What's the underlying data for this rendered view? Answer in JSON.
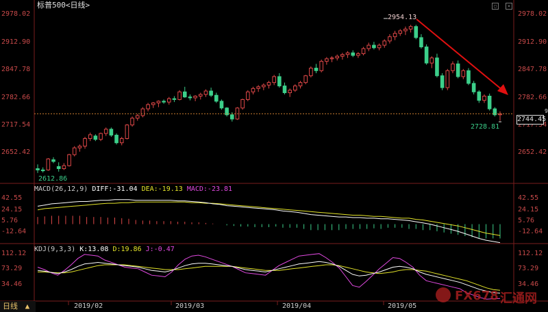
{
  "header": {
    "title": "标普500<日线>"
  },
  "icons": {
    "restore": "restore-icon",
    "close": "close-icon"
  },
  "bottom_tab": {
    "label": "日线",
    "arrow": "▲"
  },
  "watermark": {
    "brand": "FX678",
    "cn": "汇通网"
  },
  "price_axis": {
    "ticks": [
      "2978.02",
      "2912.90",
      "2847.78",
      "2782.66",
      "2717.54",
      "2652.42"
    ],
    "current": "2744.45",
    "marker": "9"
  },
  "macd_panel": {
    "label": "MACD(26,12,9)",
    "diff": "DIFF:-31.04",
    "dea": "DEA:-19.13",
    "macd": "MACD:-23.81",
    "ticks": [
      "42.55",
      "24.15",
      "5.76",
      "-12.64"
    ]
  },
  "kdj_panel": {
    "label": "KDJ(9,3,3)",
    "k": "K:13.08",
    "d": "D:19.86",
    "j": "J:-0.47",
    "ticks": [
      "112.12",
      "73.29",
      "34.46"
    ]
  },
  "date_labels": [
    "2019/02",
    "2019/03",
    "2019/04",
    "2019/05"
  ],
  "annotations": {
    "high": "2954.13",
    "low_start": "2612.86",
    "low_end": "2728.81"
  },
  "colors": {
    "up": "#e04848",
    "down": "#3ccf8a",
    "diff": "#ffffff",
    "dea": "#e6e62a",
    "j": "#e24ae2",
    "dotted": "#d08030",
    "arrow": "#e01010"
  },
  "chart_data": {
    "type": "candlestick",
    "title": "标普500<日线>",
    "ylim": [
      2590,
      2990
    ],
    "ohlc": [
      [
        2615,
        2625,
        2605,
        2612
      ],
      [
        2612,
        2618,
        2606,
        2610
      ],
      [
        2612,
        2640,
        2610,
        2638
      ],
      [
        2636,
        2642,
        2628,
        2632
      ],
      [
        2620,
        2630,
        2608,
        2615
      ],
      [
        2615,
        2628,
        2612,
        2622
      ],
      [
        2622,
        2650,
        2620,
        2648
      ],
      [
        2648,
        2668,
        2644,
        2664
      ],
      [
        2664,
        2672,
        2655,
        2668
      ],
      [
        2668,
        2690,
        2662,
        2686
      ],
      [
        2686,
        2700,
        2680,
        2695
      ],
      [
        2692,
        2696,
        2680,
        2684
      ],
      [
        2684,
        2700,
        2680,
        2698
      ],
      [
        2698,
        2712,
        2692,
        2708
      ],
      [
        2708,
        2712,
        2690,
        2694
      ],
      [
        2694,
        2698,
        2672,
        2676
      ],
      [
        2676,
        2690,
        2670,
        2686
      ],
      [
        2686,
        2720,
        2684,
        2718
      ],
      [
        2718,
        2738,
        2714,
        2734
      ],
      [
        2734,
        2744,
        2728,
        2740
      ],
      [
        2740,
        2760,
        2736,
        2756
      ],
      [
        2756,
        2770,
        2750,
        2766
      ],
      [
        2766,
        2772,
        2758,
        2770
      ],
      [
        2770,
        2776,
        2760,
        2774
      ],
      [
        2774,
        2778,
        2768,
        2772
      ],
      [
        2772,
        2784,
        2766,
        2780
      ],
      [
        2780,
        2786,
        2772,
        2778
      ],
      [
        2778,
        2800,
        2776,
        2796
      ],
      [
        2796,
        2808,
        2782,
        2784
      ],
      [
        2784,
        2790,
        2776,
        2782
      ],
      [
        2782,
        2788,
        2774,
        2786
      ],
      [
        2786,
        2794,
        2778,
        2790
      ],
      [
        2790,
        2802,
        2784,
        2798
      ],
      [
        2798,
        2806,
        2784,
        2788
      ],
      [
        2788,
        2794,
        2770,
        2774
      ],
      [
        2774,
        2778,
        2754,
        2758
      ],
      [
        2758,
        2760,
        2738,
        2742
      ],
      [
        2742,
        2748,
        2726,
        2732
      ],
      [
        2732,
        2760,
        2730,
        2758
      ],
      [
        2758,
        2780,
        2754,
        2778
      ],
      [
        2778,
        2800,
        2774,
        2796
      ],
      [
        2796,
        2808,
        2790,
        2804
      ],
      [
        2804,
        2812,
        2796,
        2808
      ],
      [
        2808,
        2816,
        2800,
        2812
      ],
      [
        2812,
        2822,
        2804,
        2818
      ],
      [
        2818,
        2836,
        2812,
        2832
      ],
      [
        2832,
        2840,
        2806,
        2810
      ],
      [
        2810,
        2818,
        2790,
        2794
      ],
      [
        2794,
        2804,
        2784,
        2800
      ],
      [
        2800,
        2814,
        2796,
        2810
      ],
      [
        2810,
        2822,
        2804,
        2818
      ],
      [
        2818,
        2836,
        2814,
        2834
      ],
      [
        2834,
        2856,
        2830,
        2852
      ],
      [
        2852,
        2862,
        2840,
        2846
      ],
      [
        2846,
        2872,
        2842,
        2868
      ],
      [
        2868,
        2878,
        2860,
        2874
      ],
      [
        2874,
        2880,
        2866,
        2876
      ],
      [
        2876,
        2884,
        2870,
        2880
      ],
      [
        2880,
        2888,
        2872,
        2884
      ],
      [
        2884,
        2892,
        2876,
        2888
      ],
      [
        2888,
        2894,
        2878,
        2882
      ],
      [
        2882,
        2890,
        2876,
        2886
      ],
      [
        2886,
        2902,
        2882,
        2898
      ],
      [
        2898,
        2912,
        2892,
        2906
      ],
      [
        2906,
        2914,
        2896,
        2900
      ],
      [
        2900,
        2910,
        2894,
        2906
      ],
      [
        2906,
        2920,
        2900,
        2916
      ],
      [
        2916,
        2932,
        2910,
        2926
      ],
      [
        2926,
        2940,
        2918,
        2934
      ],
      [
        2934,
        2944,
        2928,
        2940
      ],
      [
        2940,
        2950,
        2930,
        2944
      ],
      [
        2944,
        2954,
        2936,
        2950
      ],
      [
        2950,
        2954,
        2920,
        2924
      ],
      [
        2924,
        2932,
        2898,
        2902
      ],
      [
        2902,
        2908,
        2860,
        2864
      ],
      [
        2864,
        2880,
        2852,
        2876
      ],
      [
        2876,
        2886,
        2830,
        2834
      ],
      [
        2834,
        2840,
        2800,
        2806
      ],
      [
        2806,
        2850,
        2800,
        2846
      ],
      [
        2846,
        2868,
        2840,
        2862
      ],
      [
        2862,
        2870,
        2828,
        2832
      ],
      [
        2832,
        2850,
        2826,
        2846
      ],
      [
        2846,
        2852,
        2812,
        2816
      ],
      [
        2816,
        2822,
        2790,
        2796
      ],
      [
        2796,
        2800,
        2770,
        2776
      ],
      [
        2776,
        2790,
        2770,
        2786
      ],
      [
        2786,
        2792,
        2752,
        2756
      ],
      [
        2756,
        2760,
        2738,
        2742
      ],
      [
        2742,
        2750,
        2728,
        2744
      ]
    ],
    "macd": {
      "diff": [
        30,
        32,
        34,
        35,
        36,
        37,
        38,
        38,
        39,
        40,
        40,
        41,
        41,
        41,
        40,
        40,
        40,
        40,
        40,
        40,
        39,
        39,
        38,
        37,
        36,
        34,
        33,
        31,
        30,
        29,
        28,
        27,
        26,
        25,
        24,
        22,
        21,
        20,
        18,
        16,
        15,
        14,
        13,
        12,
        12,
        11,
        11,
        10,
        10,
        9,
        9,
        8,
        7,
        6,
        4,
        2,
        0,
        -3,
        -6,
        -9,
        -12,
        -16,
        -20,
        -24,
        -27,
        -29,
        -31
      ],
      "dea": [
        24,
        26,
        27,
        28,
        29,
        30,
        31,
        32,
        33,
        34,
        35,
        35,
        36,
        36,
        37,
        37,
        37,
        37,
        37,
        37,
        37,
        37,
        36,
        36,
        35,
        35,
        34,
        33,
        32,
        31,
        30,
        29,
        28,
        27,
        26,
        25,
        24,
        23,
        22,
        21,
        20,
        19,
        18,
        17,
        16,
        15,
        15,
        14,
        13,
        13,
        12,
        11,
        10,
        10,
        8,
        7,
        5,
        3,
        1,
        -1,
        -3,
        -6,
        -9,
        -12,
        -15,
        -17,
        -19
      ],
      "hist": [
        12,
        13,
        14,
        14,
        14,
        14,
        14,
        12,
        12,
        12,
        11,
        11,
        10,
        9,
        7,
        6,
        6,
        5,
        5,
        5,
        4,
        4,
        3,
        3,
        2,
        1,
        0,
        -2,
        -3,
        -4,
        -4,
        -5,
        -5,
        -5,
        -4,
        -6,
        -6,
        -6,
        -8,
        -10,
        -10,
        -10,
        -10,
        -10,
        -8,
        -8,
        -8,
        -8,
        -7,
        -8,
        -6,
        -6,
        -6,
        -8,
        -8,
        -10,
        -10,
        -12,
        -14,
        -16,
        -18,
        -20,
        -22,
        -24,
        -24,
        -24,
        -24
      ],
      "ylim": [
        -28,
        50
      ]
    },
    "kdj": {
      "k": [
        70,
        68,
        65,
        62,
        66,
        72,
        80,
        86,
        88,
        90,
        88,
        86,
        84,
        82,
        80,
        78,
        74,
        70,
        68,
        66,
        70,
        76,
        82,
        86,
        88,
        88,
        86,
        84,
        82,
        80,
        76,
        72,
        70,
        68,
        66,
        70,
        74,
        78,
        82,
        86,
        88,
        90,
        92,
        90,
        86,
        80,
        70,
        60,
        56,
        58,
        62,
        66,
        72,
        78,
        80,
        78,
        74,
        66,
        60,
        56,
        52,
        48,
        44,
        40,
        34,
        28,
        22,
        18,
        14,
        13
      ],
      "d": [
        66,
        66,
        65,
        64,
        64,
        66,
        70,
        74,
        78,
        82,
        84,
        84,
        84,
        84,
        82,
        80,
        78,
        76,
        74,
        72,
        72,
        72,
        74,
        76,
        78,
        80,
        80,
        80,
        80,
        80,
        78,
        76,
        74,
        72,
        70,
        70,
        70,
        72,
        74,
        76,
        78,
        80,
        82,
        84,
        84,
        82,
        78,
        74,
        70,
        66,
        64,
        62,
        64,
        66,
        70,
        72,
        72,
        70,
        68,
        64,
        60,
        56,
        52,
        48,
        44,
        38,
        32,
        26,
        22,
        20
      ],
      "j": [
        78,
        72,
        64,
        58,
        70,
        84,
        100,
        110,
        108,
        106,
        96,
        90,
        84,
        78,
        76,
        74,
        66,
        58,
        56,
        54,
        66,
        84,
        98,
        106,
        108,
        104,
        98,
        92,
        86,
        80,
        72,
        64,
        62,
        60,
        58,
        70,
        82,
        90,
        98,
        106,
        108,
        110,
        112,
        102,
        90,
        76,
        54,
        32,
        28,
        42,
        58,
        74,
        88,
        102,
        100,
        90,
        78,
        58,
        44,
        40,
        36,
        32,
        28,
        24,
        14,
        8,
        2,
        -2,
        -1,
        -0.5
      ],
      "ylim": [
        0,
        120
      ]
    }
  }
}
